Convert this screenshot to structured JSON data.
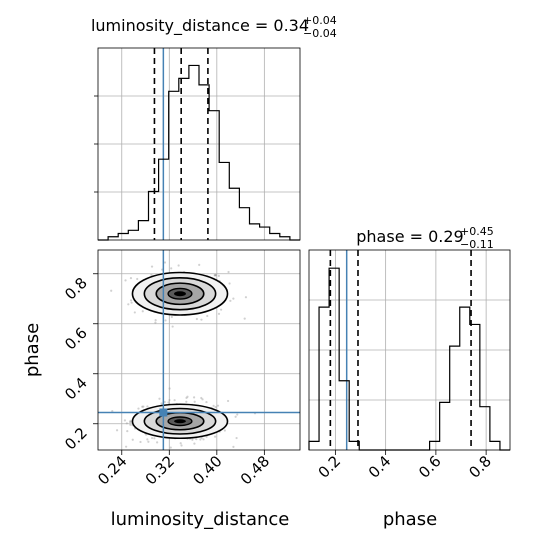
{
  "chart_data": {
    "type": "corner",
    "parameters": [
      "luminosity_distance",
      "phase"
    ],
    "axis_labels": {
      "luminosity_distance": "luminosity_distance",
      "phase": "phase"
    },
    "titles": {
      "luminosity_distance": {
        "prefix": "luminosity_distance = ",
        "median": "0.34",
        "plus": "+0.04",
        "minus": "−0.04"
      },
      "phase": {
        "prefix": "phase = ",
        "median": "0.29",
        "plus": "+0.45",
        "minus": "−0.11"
      }
    },
    "ranges": {
      "luminosity_distance": [
        0.2,
        0.54
      ],
      "phase": [
        0.095,
        0.895
      ]
    },
    "ticks": {
      "luminosity_distance": [
        "0.24",
        "0.32",
        "0.40",
        "0.48"
      ],
      "phase": [
        "0.2",
        "0.4",
        "0.6",
        "0.8"
      ]
    },
    "truths": {
      "luminosity_distance": 0.31,
      "phase": 0.245
    },
    "quantiles": {
      "luminosity_distance": [
        0.295,
        0.34,
        0.385
      ],
      "phase": [
        0.18,
        0.29,
        0.74
      ]
    },
    "hist_luminosity_distance": {
      "edges_start": 0.2,
      "bin_width": 0.017,
      "counts": [
        0,
        2,
        4,
        6,
        12,
        30,
        50,
        92,
        100,
        108,
        96,
        80,
        48,
        32,
        20,
        10,
        8,
        4,
        2,
        0
      ]
    },
    "hist_phase": {
      "edges_start": 0.095,
      "bin_width": 0.04,
      "counts": [
        4,
        66,
        84,
        32,
        4,
        0,
        0,
        0,
        0,
        0,
        0,
        0,
        4,
        22,
        48,
        66,
        58,
        20,
        4,
        0
      ]
    },
    "contour_centers": [
      {
        "x": 0.338,
        "y": 0.72,
        "sx": 0.04,
        "sy": 0.05,
        "weight": 0.42
      },
      {
        "x": 0.338,
        "y": 0.21,
        "sx": 0.04,
        "sy": 0.04,
        "weight": 0.58
      }
    ],
    "grid": true
  }
}
